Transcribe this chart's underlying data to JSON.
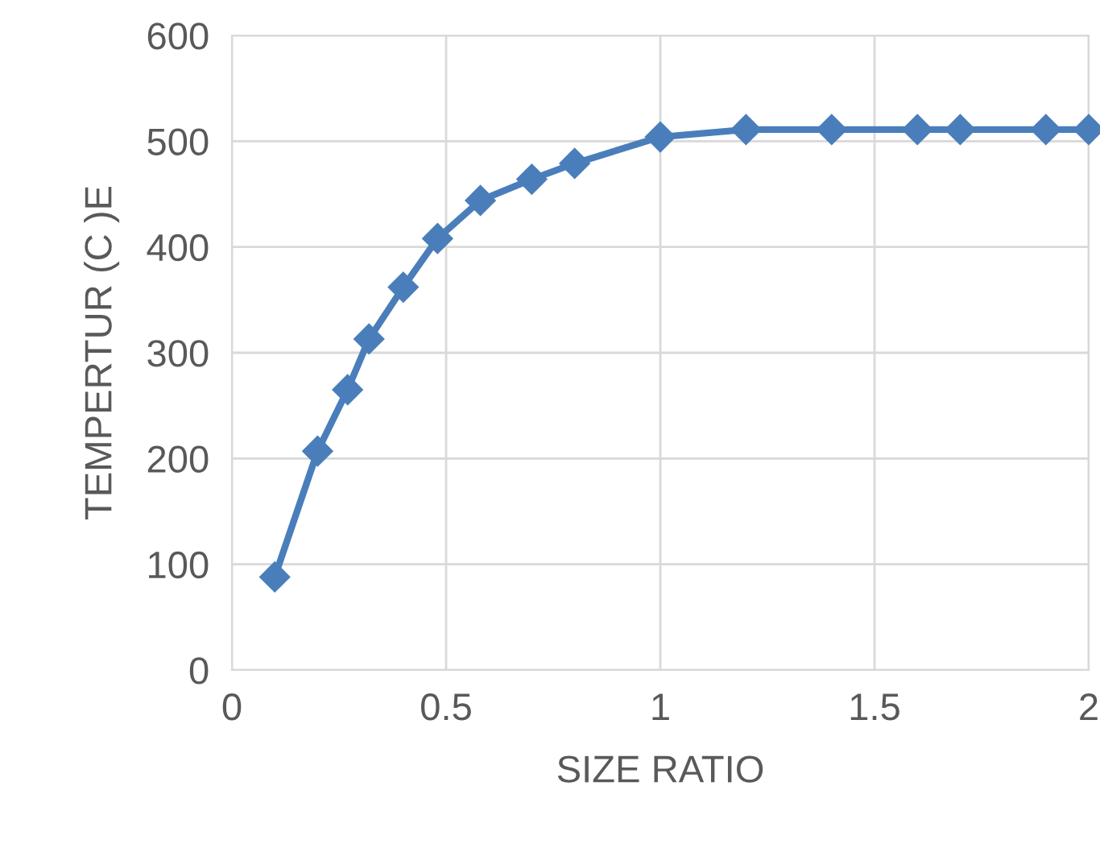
{
  "chart_data": {
    "type": "line",
    "xlabel": "SIZE RATIO",
    "ylabel": "TEMPERTUR (C )E",
    "x": [
      0.1,
      0.2,
      0.27,
      0.32,
      0.4,
      0.48,
      0.58,
      0.7,
      0.8,
      1.0,
      1.2,
      1.4,
      1.6,
      1.7,
      1.9,
      2.0
    ],
    "series": [
      {
        "color": "#4a7ebb",
        "values": [
          88,
          207,
          265,
          313,
          362,
          408,
          444,
          464,
          479,
          504,
          511,
          511,
          511,
          511,
          511,
          511
        ]
      }
    ],
    "xlim": [
      0,
      2
    ],
    "xticks": [
      0,
      0.5,
      1,
      1.5,
      2
    ],
    "ylim": [
      0,
      600
    ],
    "yticks": [
      0,
      100,
      200,
      300,
      400,
      500,
      600
    ],
    "grid": true,
    "marker": "diamond",
    "line_style": "solid"
  }
}
